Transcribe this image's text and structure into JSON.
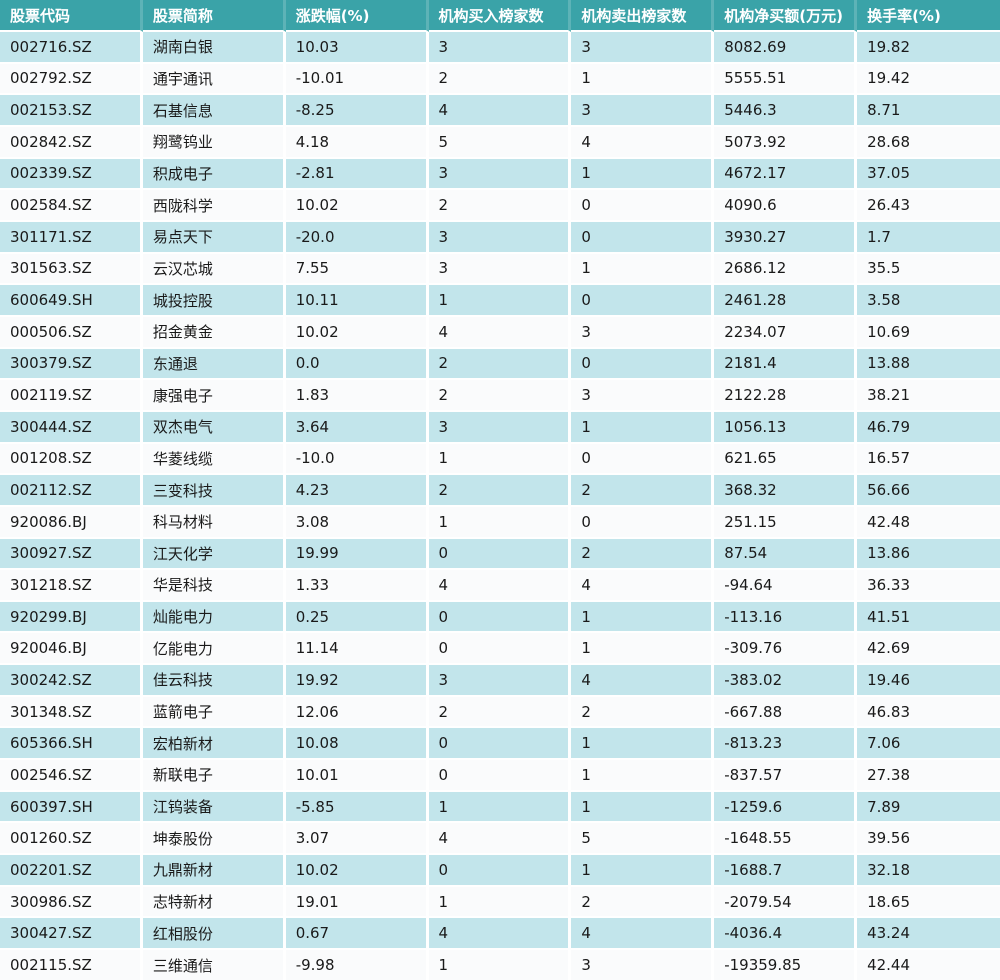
{
  "colors": {
    "header_bg": "#3AA3A8",
    "header_text": "#FFFFFF",
    "row_odd": "#C2E5EB",
    "row_even": "#FAFBFC",
    "separator": "#FFFFFF",
    "cell_text": "#1A1A1A"
  },
  "table": {
    "columns": [
      {
        "key": "code",
        "label": "股票代码"
      },
      {
        "key": "name",
        "label": "股票简称"
      },
      {
        "key": "change",
        "label": "涨跌幅(%)"
      },
      {
        "key": "buy",
        "label": "机构买入榜家数"
      },
      {
        "key": "sell",
        "label": "机构卖出榜家数"
      },
      {
        "key": "net",
        "label": "机构净买额(万元)"
      },
      {
        "key": "turnover",
        "label": "换手率(%)"
      }
    ],
    "rows": [
      {
        "code": "002716.SZ",
        "name": "湖南白银",
        "change": "10.03",
        "buy": "3",
        "sell": "3",
        "net": "8082.69",
        "turnover": "19.82"
      },
      {
        "code": "002792.SZ",
        "name": "通宇通讯",
        "change": "-10.01",
        "buy": "2",
        "sell": "1",
        "net": "5555.51",
        "turnover": "19.42"
      },
      {
        "code": "002153.SZ",
        "name": "石基信息",
        "change": "-8.25",
        "buy": "4",
        "sell": "3",
        "net": "5446.3",
        "turnover": "8.71"
      },
      {
        "code": "002842.SZ",
        "name": "翔鹭钨业",
        "change": "4.18",
        "buy": "5",
        "sell": "4",
        "net": "5073.92",
        "turnover": "28.68"
      },
      {
        "code": "002339.SZ",
        "name": "积成电子",
        "change": "-2.81",
        "buy": "3",
        "sell": "1",
        "net": "4672.17",
        "turnover": "37.05"
      },
      {
        "code": "002584.SZ",
        "name": "西陇科学",
        "change": "10.02",
        "buy": "2",
        "sell": "0",
        "net": "4090.6",
        "turnover": "26.43"
      },
      {
        "code": "301171.SZ",
        "name": "易点天下",
        "change": "-20.0",
        "buy": "3",
        "sell": "0",
        "net": "3930.27",
        "turnover": "1.7"
      },
      {
        "code": "301563.SZ",
        "name": "云汉芯城",
        "change": "7.55",
        "buy": "3",
        "sell": "1",
        "net": "2686.12",
        "turnover": "35.5"
      },
      {
        "code": "600649.SH",
        "name": "城投控股",
        "change": "10.11",
        "buy": "1",
        "sell": "0",
        "net": "2461.28",
        "turnover": "3.58"
      },
      {
        "code": "000506.SZ",
        "name": "招金黄金",
        "change": "10.02",
        "buy": "4",
        "sell": "3",
        "net": "2234.07",
        "turnover": "10.69"
      },
      {
        "code": "300379.SZ",
        "name": "东通退",
        "change": "0.0",
        "buy": "2",
        "sell": "0",
        "net": "2181.4",
        "turnover": "13.88"
      },
      {
        "code": "002119.SZ",
        "name": "康强电子",
        "change": "1.83",
        "buy": "2",
        "sell": "3",
        "net": "2122.28",
        "turnover": "38.21"
      },
      {
        "code": "300444.SZ",
        "name": "双杰电气",
        "change": "3.64",
        "buy": "3",
        "sell": "1",
        "net": "1056.13",
        "turnover": "46.79"
      },
      {
        "code": "001208.SZ",
        "name": "华菱线缆",
        "change": "-10.0",
        "buy": "1",
        "sell": "0",
        "net": "621.65",
        "turnover": "16.57"
      },
      {
        "code": "002112.SZ",
        "name": "三变科技",
        "change": "4.23",
        "buy": "2",
        "sell": "2",
        "net": "368.32",
        "turnover": "56.66"
      },
      {
        "code": "920086.BJ",
        "name": "科马材料",
        "change": "3.08",
        "buy": "1",
        "sell": "0",
        "net": "251.15",
        "turnover": "42.48"
      },
      {
        "code": "300927.SZ",
        "name": "江天化学",
        "change": "19.99",
        "buy": "0",
        "sell": "2",
        "net": "87.54",
        "turnover": "13.86"
      },
      {
        "code": "301218.SZ",
        "name": "华是科技",
        "change": "1.33",
        "buy": "4",
        "sell": "4",
        "net": "-94.64",
        "turnover": "36.33"
      },
      {
        "code": "920299.BJ",
        "name": "灿能电力",
        "change": "0.25",
        "buy": "0",
        "sell": "1",
        "net": "-113.16",
        "turnover": "41.51"
      },
      {
        "code": "920046.BJ",
        "name": "亿能电力",
        "change": "11.14",
        "buy": "0",
        "sell": "1",
        "net": "-309.76",
        "turnover": "42.69"
      },
      {
        "code": "300242.SZ",
        "name": "佳云科技",
        "change": "19.92",
        "buy": "3",
        "sell": "4",
        "net": "-383.02",
        "turnover": "19.46"
      },
      {
        "code": "301348.SZ",
        "name": "蓝箭电子",
        "change": "12.06",
        "buy": "2",
        "sell": "2",
        "net": "-667.88",
        "turnover": "46.83"
      },
      {
        "code": "605366.SH",
        "name": "宏柏新材",
        "change": "10.08",
        "buy": "0",
        "sell": "1",
        "net": "-813.23",
        "turnover": "7.06"
      },
      {
        "code": "002546.SZ",
        "name": "新联电子",
        "change": "10.01",
        "buy": "0",
        "sell": "1",
        "net": "-837.57",
        "turnover": "27.38"
      },
      {
        "code": "600397.SH",
        "name": "江钨装备",
        "change": "-5.85",
        "buy": "1",
        "sell": "1",
        "net": "-1259.6",
        "turnover": "7.89"
      },
      {
        "code": "001260.SZ",
        "name": "坤泰股份",
        "change": "3.07",
        "buy": "4",
        "sell": "5",
        "net": "-1648.55",
        "turnover": "39.56"
      },
      {
        "code": "002201.SZ",
        "name": "九鼎新材",
        "change": "10.02",
        "buy": "0",
        "sell": "1",
        "net": "-1688.7",
        "turnover": "32.18"
      },
      {
        "code": "300986.SZ",
        "name": "志特新材",
        "change": "19.01",
        "buy": "1",
        "sell": "2",
        "net": "-2079.54",
        "turnover": "18.65"
      },
      {
        "code": "300427.SZ",
        "name": "红相股份",
        "change": "0.67",
        "buy": "4",
        "sell": "4",
        "net": "-4036.4",
        "turnover": "43.24"
      },
      {
        "code": "002115.SZ",
        "name": "三维通信",
        "change": "-9.98",
        "buy": "1",
        "sell": "3",
        "net": "-19359.85",
        "turnover": "42.44"
      }
    ]
  }
}
